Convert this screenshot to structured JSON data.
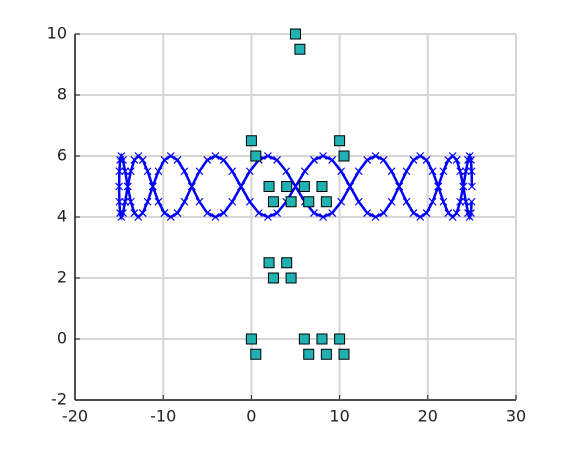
{
  "chart_data": {
    "type": "scatter",
    "xlim": [
      -20,
      30
    ],
    "ylim": [
      -2,
      10
    ],
    "xticks": [
      -20,
      -10,
      0,
      10,
      20,
      30
    ],
    "yticks": [
      -2,
      0,
      2,
      4,
      6,
      8,
      10
    ],
    "grid": true,
    "series": [
      {
        "color": "#0000ff",
        "marker": "x",
        "x": [
          25,
          24.97,
          24.89,
          24.75,
          24.56,
          24.32,
          24.02,
          23.67,
          23.27,
          22.82,
          22.32,
          21.77,
          21.18,
          20.54,
          19.86,
          19.14,
          18.38,
          17.59,
          16.76,
          15.89,
          15,
          14.08,
          13.13,
          12.17,
          11.18,
          10.18,
          9.16,
          8.13,
          7.09,
          6.05,
          5,
          3.95,
          2.91,
          1.87,
          0.84,
          -0.18,
          -1.18,
          -2.17,
          -3.13,
          -4.08,
          -5,
          -5.89,
          -6.76,
          -7.59,
          -8.38,
          -9.14,
          -9.86,
          -10.54,
          -11.18,
          -11.77,
          -12.32,
          -12.82,
          -13.27,
          -13.67,
          -14.02,
          -14.32,
          -14.56,
          -14.75,
          -14.89,
          -14.97,
          -15,
          -14.97,
          -14.89,
          -14.75,
          -14.56,
          -14.32,
          -14.02,
          -13.67,
          -13.27,
          -12.82,
          -12.32,
          -11.77,
          -11.18,
          -10.54,
          -9.86,
          -9.14,
          -8.38,
          -7.59,
          -6.76,
          -5.89,
          -5,
          -4.08,
          -3.13,
          -2.17,
          -1.18,
          -0.18,
          0.84,
          1.87,
          2.91,
          3.95,
          5,
          6.05,
          7.09,
          8.13,
          9.16,
          10.18,
          11.18,
          12.17,
          13.13,
          14.08,
          15,
          15.89,
          16.76,
          17.59,
          18.38,
          19.14,
          19.86,
          20.54,
          21.18,
          21.77,
          22.32,
          22.82,
          23.27,
          23.67,
          24.02,
          24.32,
          24.56,
          24.75,
          24.89,
          24.97
        ],
        "y": [
          5,
          5.5,
          5.87,
          6,
          5.87,
          5.5,
          5,
          4.5,
          4.13,
          4,
          4.13,
          4.5,
          5,
          5.5,
          5.87,
          6,
          5.87,
          5.5,
          5,
          4.5,
          4.13,
          4,
          4.13,
          4.5,
          5,
          5.5,
          5.87,
          6,
          5.87,
          5.5,
          5,
          4.5,
          4.13,
          4,
          4.13,
          4.5,
          5,
          5.5,
          5.87,
          6,
          5.87,
          5.5,
          5,
          4.5,
          4.13,
          4,
          4.13,
          4.5,
          5,
          5.5,
          5.87,
          6,
          5.87,
          5.5,
          5,
          4.5,
          4.13,
          4,
          4.13,
          4.5,
          5,
          5.5,
          5.87,
          6,
          5.87,
          5.5,
          5,
          4.5,
          4.13,
          4,
          4.13,
          4.5,
          5,
          5.5,
          5.87,
          6,
          5.87,
          5.5,
          5,
          4.5,
          4.13,
          4,
          4.13,
          4.5,
          5,
          5.5,
          5.87,
          6,
          5.87,
          5.5,
          5,
          4.5,
          4.13,
          4,
          4.13,
          4.5,
          5,
          5.5,
          5.87,
          6,
          5.87,
          5.5,
          5,
          4.5,
          4.13,
          4,
          4.13,
          4.5,
          5,
          5.5,
          5.87,
          6,
          5.87,
          5.5,
          5,
          4.5,
          4.13,
          4,
          4.13,
          4.5
        ]
      },
      {
        "color": "#20b2b2",
        "marker": "square",
        "x": [
          5,
          5.5,
          0,
          0.5,
          10,
          10.5,
          2,
          2.5,
          4,
          4.5,
          6,
          6.5,
          8,
          8.5,
          2,
          4,
          2.5,
          4.5,
          0,
          0.5,
          6,
          6.5,
          8,
          8.5,
          10,
          10.5
        ],
        "y": [
          10,
          9.5,
          6.5,
          6,
          6.5,
          6,
          5,
          4.5,
          5,
          4.5,
          5,
          4.5,
          5,
          4.5,
          2.5,
          2.5,
          2,
          2,
          0,
          -0.5,
          0,
          -0.5,
          0,
          -0.5,
          0,
          -0.5
        ]
      }
    ]
  }
}
